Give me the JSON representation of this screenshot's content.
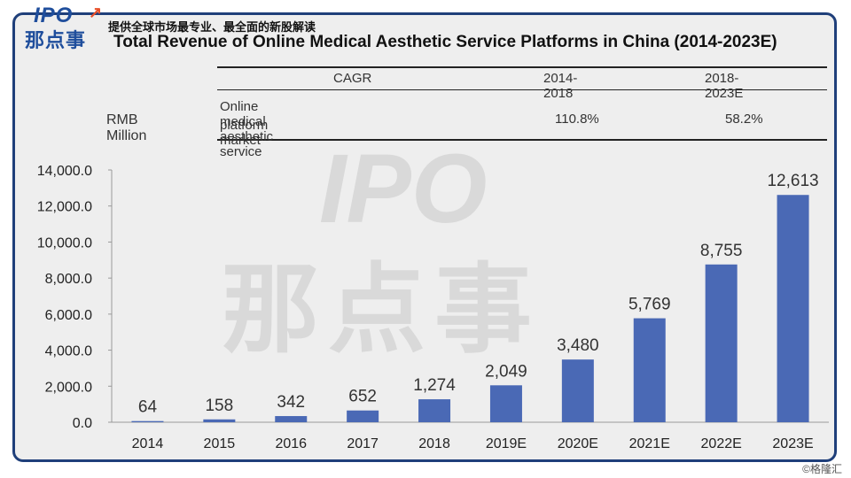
{
  "header": {
    "logo_text": "IPO",
    "logo_cn": "那点事",
    "subtitle": "提供全球市场最专业、最全面的新股解读",
    "watermark_text": "IPO",
    "watermark_cn": "那点事",
    "credit": "©格隆汇"
  },
  "cagr_table": {
    "header_label": "CAGR",
    "unit_label": "RMB Million",
    "periods": [
      "2014-2018",
      "2018-2023E"
    ],
    "row_label_line1": "Online medical aesthetic service",
    "row_label_line2": "platform market",
    "values": [
      "110.8%",
      "58.2%"
    ]
  },
  "chart_data": {
    "type": "bar",
    "title": "Total Revenue of Online Medical Aesthetic Service Platforms in China (2014-2023E)",
    "categories": [
      "2014",
      "2015",
      "2016",
      "2017",
      "2018",
      "2019E",
      "2020E",
      "2021E",
      "2022E",
      "2023E"
    ],
    "values": [
      64,
      158,
      342,
      652,
      1274,
      2049,
      3480,
      5769,
      8755,
      12613
    ],
    "data_labels": [
      "64",
      "158",
      "342",
      "652",
      "1,274",
      "2,049",
      "3,480",
      "5,769",
      "8,755",
      "12,613"
    ],
    "ylim": [
      0,
      14000
    ],
    "yticks": [
      0,
      2000,
      4000,
      6000,
      8000,
      10000,
      12000,
      14000
    ],
    "ytick_labels": [
      "0.0",
      "2,000.0",
      "4,000.0",
      "6,000.0",
      "8,000.0",
      "10,000.0",
      "12,000.0",
      "14,000.0"
    ],
    "xlabel": "",
    "ylabel": "RMB Million",
    "bar_color": "#4a69b5"
  }
}
